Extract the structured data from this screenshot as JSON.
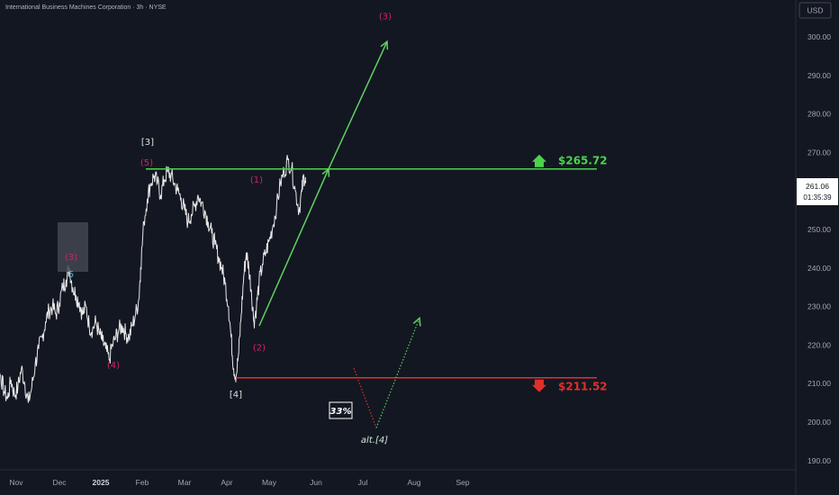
{
  "header": {
    "title": "International Business Machines Corporation · 3h · NYSE"
  },
  "currency_badge": "USD",
  "price_badge": {
    "price": "261.06",
    "countdown": "01:35:39"
  },
  "chart_data": {
    "type": "line",
    "ylim": [
      186,
      308
    ],
    "y_ticks": [
      {
        "v": 300,
        "label": "300.00"
      },
      {
        "v": 290,
        "label": "290.00"
      },
      {
        "v": 280,
        "label": "280.00"
      },
      {
        "v": 270,
        "label": "270.00"
      },
      {
        "v": 260,
        "label": "260.00"
      },
      {
        "v": 250,
        "label": "250.00"
      },
      {
        "v": 240,
        "label": "240.00"
      },
      {
        "v": 230,
        "label": "230.00"
      },
      {
        "v": 220,
        "label": "220.00"
      },
      {
        "v": 210,
        "label": "210.00"
      },
      {
        "v": 200,
        "label": "200.00"
      },
      {
        "v": 190,
        "label": "190.00"
      }
    ],
    "x_ticks": [
      {
        "m": 0,
        "label": "Nov",
        "bold": false
      },
      {
        "m": 1,
        "label": "Dec",
        "bold": false
      },
      {
        "m": 2,
        "label": "2025",
        "bold": true
      },
      {
        "m": 3,
        "label": "Feb",
        "bold": false
      },
      {
        "m": 4,
        "label": "Mar",
        "bold": false
      },
      {
        "m": 5,
        "label": "Apr",
        "bold": false
      },
      {
        "m": 6,
        "label": "May",
        "bold": false
      },
      {
        "m": 7,
        "label": "Jun",
        "bold": false
      },
      {
        "m": 8,
        "label": "Jul",
        "bold": false
      },
      {
        "m": 9,
        "label": "Aug",
        "bold": false
      },
      {
        "m": 10,
        "label": "Sep",
        "bold": false
      }
    ],
    "price_path": [
      [
        -0.35,
        232
      ],
      [
        -0.3,
        226
      ],
      [
        -0.26,
        220
      ],
      [
        -0.22,
        214
      ],
      [
        -0.18,
        212
      ],
      [
        -0.14,
        208
      ],
      [
        -0.1,
        206
      ],
      [
        -0.06,
        211
      ],
      [
        -0.02,
        207
      ],
      [
        0.02,
        209
      ],
      [
        0.06,
        214
      ],
      [
        0.1,
        210
      ],
      [
        0.14,
        205
      ],
      [
        0.18,
        209
      ],
      [
        0.22,
        215
      ],
      [
        0.26,
        219
      ],
      [
        0.3,
        222
      ],
      [
        0.34,
        226
      ],
      [
        0.38,
        229
      ],
      [
        0.42,
        230
      ],
      [
        0.46,
        228
      ],
      [
        0.5,
        231
      ],
      [
        0.54,
        235
      ],
      [
        0.58,
        237
      ],
      [
        0.62,
        240
      ],
      [
        0.66,
        235
      ],
      [
        0.7,
        233
      ],
      [
        0.74,
        231
      ],
      [
        0.78,
        228
      ],
      [
        0.82,
        230
      ],
      [
        0.86,
        225
      ],
      [
        0.9,
        224
      ],
      [
        0.94,
        226
      ],
      [
        0.98,
        223
      ],
      [
        1.02,
        221
      ],
      [
        1.06,
        219
      ],
      [
        1.1,
        216
      ],
      [
        1.14,
        220
      ],
      [
        1.18,
        222
      ],
      [
        1.22,
        224
      ],
      [
        1.26,
        225
      ],
      [
        1.3,
        223
      ],
      [
        1.34,
        222
      ],
      [
        1.38,
        225
      ],
      [
        1.42,
        228
      ],
      [
        1.46,
        232
      ],
      [
        1.48,
        240
      ],
      [
        1.52,
        252
      ],
      [
        1.56,
        258
      ],
      [
        1.6,
        262
      ],
      [
        1.64,
        264
      ],
      [
        1.68,
        262
      ],
      [
        1.72,
        259
      ],
      [
        1.76,
        263
      ],
      [
        1.8,
        265
      ],
      [
        1.84,
        264
      ],
      [
        1.88,
        262
      ],
      [
        1.92,
        260
      ],
      [
        1.96,
        258
      ],
      [
        2.0,
        255
      ],
      [
        2.04,
        252
      ],
      [
        2.08,
        254
      ],
      [
        2.12,
        256
      ],
      [
        2.16,
        259
      ],
      [
        2.2,
        257
      ],
      [
        2.24,
        255
      ],
      [
        2.28,
        252
      ],
      [
        2.32,
        249
      ],
      [
        2.36,
        246
      ],
      [
        2.4,
        243
      ],
      [
        2.44,
        240
      ],
      [
        2.48,
        236
      ],
      [
        2.52,
        230
      ],
      [
        2.55,
        222
      ],
      [
        2.58,
        214
      ],
      [
        2.61,
        212
      ],
      [
        2.64,
        218
      ],
      [
        2.67,
        228
      ],
      [
        2.7,
        238
      ],
      [
        2.73,
        244
      ],
      [
        2.76,
        240
      ],
      [
        2.79,
        234
      ],
      [
        2.82,
        226
      ],
      [
        2.85,
        230
      ],
      [
        2.88,
        236
      ],
      [
        2.92,
        241
      ],
      [
        2.96,
        244
      ],
      [
        3.0,
        247
      ],
      [
        3.04,
        251
      ],
      [
        3.08,
        256
      ],
      [
        3.12,
        262
      ],
      [
        3.16,
        265
      ],
      [
        3.2,
        268
      ],
      [
        3.24,
        266
      ],
      [
        3.28,
        260
      ],
      [
        3.32,
        255
      ],
      [
        3.35,
        260
      ],
      [
        3.37,
        264
      ],
      [
        3.39,
        262
      ]
    ],
    "x_map": {
      "data_left": -0.35,
      "data_right": 3.39
    },
    "levels": [
      {
        "name": "resistance",
        "value": 265.72,
        "label": "$265.72",
        "color": "#4cd34c"
      },
      {
        "name": "support",
        "value": 211.52,
        "label": "$211.52",
        "color": "#e0302a"
      }
    ],
    "wave_labels": [
      {
        "text": "(3)",
        "m": 0.27,
        "v": 242,
        "color": "#d6206a"
      },
      {
        "text": "5",
        "m": 0.27,
        "v": 237.6,
        "color": "#4fb4e8"
      },
      {
        "text": "(4)",
        "m": 1.2,
        "v": 214,
        "color": "#d6206a"
      },
      {
        "text": "[3]",
        "m": 2.07,
        "v": 272,
        "color": "#cfe8d4"
      },
      {
        "text": "(5)",
        "m": 2.07,
        "v": 266.6,
        "color": "#d6206a"
      },
      {
        "text": "(1)",
        "m": 5.45,
        "v": 262.2,
        "color": "#d6206a"
      },
      {
        "text": "(2)",
        "m": 5.55,
        "v": 218.6,
        "color": "#d6206a"
      },
      {
        "text": "[4]",
        "m": 5.18,
        "v": 206.4,
        "color": "#cfe8d4"
      },
      {
        "text": "(3)",
        "m": 7.3,
        "v": 304.5,
        "color": "#d6206a"
      },
      {
        "text": "alt.[4]",
        "m": 7.2,
        "v": 194.6,
        "color": "#cfe8d4"
      }
    ],
    "probability_label": "33%"
  }
}
